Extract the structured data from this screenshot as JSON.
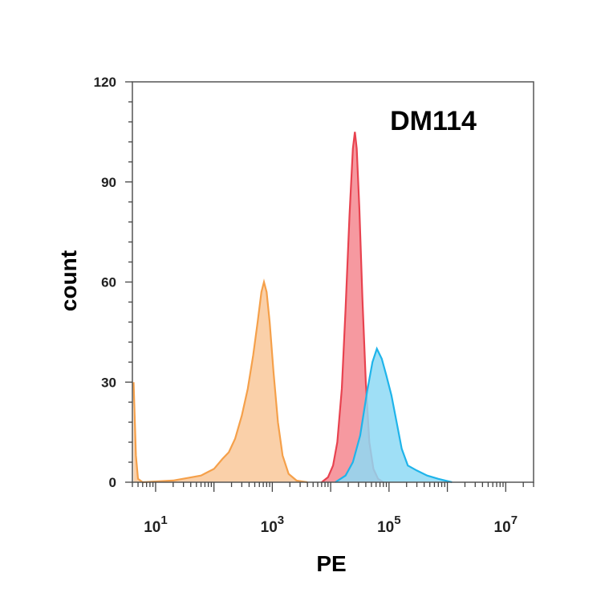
{
  "chart_data": {
    "type": "area",
    "title": "DM114",
    "xlabel": "PE",
    "ylabel": "count",
    "x_scale": "log",
    "xlim": [
      4,
      30000000.0
    ],
    "ylim": [
      0,
      120
    ],
    "y_ticks": [
      0,
      30,
      60,
      90,
      120
    ],
    "x_ticks": [
      {
        "value": 10,
        "base": "10",
        "exp": "1"
      },
      {
        "value": 1000,
        "base": "10",
        "exp": "3"
      },
      {
        "value": 100000,
        "base": "10",
        "exp": "5"
      },
      {
        "value": 10000000,
        "base": "10",
        "exp": "7"
      }
    ],
    "grid": false,
    "legend": "none",
    "series": [
      {
        "color": "#f5a04a",
        "fill": "#f9c89a",
        "points": [
          [
            4.2,
            30
          ],
          [
            4.6,
            8
          ],
          [
            5,
            1
          ],
          [
            6,
            0
          ],
          [
            20,
            0.5
          ],
          [
            60,
            2
          ],
          [
            100,
            4
          ],
          [
            140,
            7
          ],
          [
            180,
            9
          ],
          [
            230,
            13
          ],
          [
            300,
            20
          ],
          [
            380,
            28
          ],
          [
            470,
            38
          ],
          [
            560,
            48
          ],
          [
            650,
            57
          ],
          [
            720,
            60
          ],
          [
            800,
            57
          ],
          [
            900,
            48
          ],
          [
            1050,
            33
          ],
          [
            1250,
            18
          ],
          [
            1500,
            8
          ],
          [
            1900,
            2.5
          ],
          [
            2600,
            0.5
          ],
          [
            4000,
            0
          ]
        ]
      },
      {
        "color": "#e8424f",
        "fill": "#f5878f",
        "points": [
          [
            7000,
            0
          ],
          [
            9000,
            1.5
          ],
          [
            11000,
            5
          ],
          [
            13000,
            12
          ],
          [
            15500,
            28
          ],
          [
            18000,
            52
          ],
          [
            21000,
            80
          ],
          [
            24000,
            100
          ],
          [
            26000,
            105
          ],
          [
            28000,
            100
          ],
          [
            31000,
            82
          ],
          [
            35000,
            55
          ],
          [
            40000,
            30
          ],
          [
            46000,
            12
          ],
          [
            54000,
            4
          ],
          [
            65000,
            1
          ],
          [
            80000,
            0
          ]
        ]
      },
      {
        "color": "#1fb4ea",
        "fill": "#8ed9f4",
        "points": [
          [
            12000,
            0
          ],
          [
            18000,
            2
          ],
          [
            24000,
            6
          ],
          [
            32000,
            14
          ],
          [
            42000,
            27
          ],
          [
            52000,
            36
          ],
          [
            62000,
            40
          ],
          [
            75000,
            37
          ],
          [
            90000,
            32
          ],
          [
            110000,
            26
          ],
          [
            135000,
            18
          ],
          [
            165000,
            10
          ],
          [
            210000,
            5
          ],
          [
            300000,
            3.5
          ],
          [
            450000,
            2
          ],
          [
            700000,
            1
          ],
          [
            1200000,
            0
          ]
        ]
      }
    ]
  }
}
